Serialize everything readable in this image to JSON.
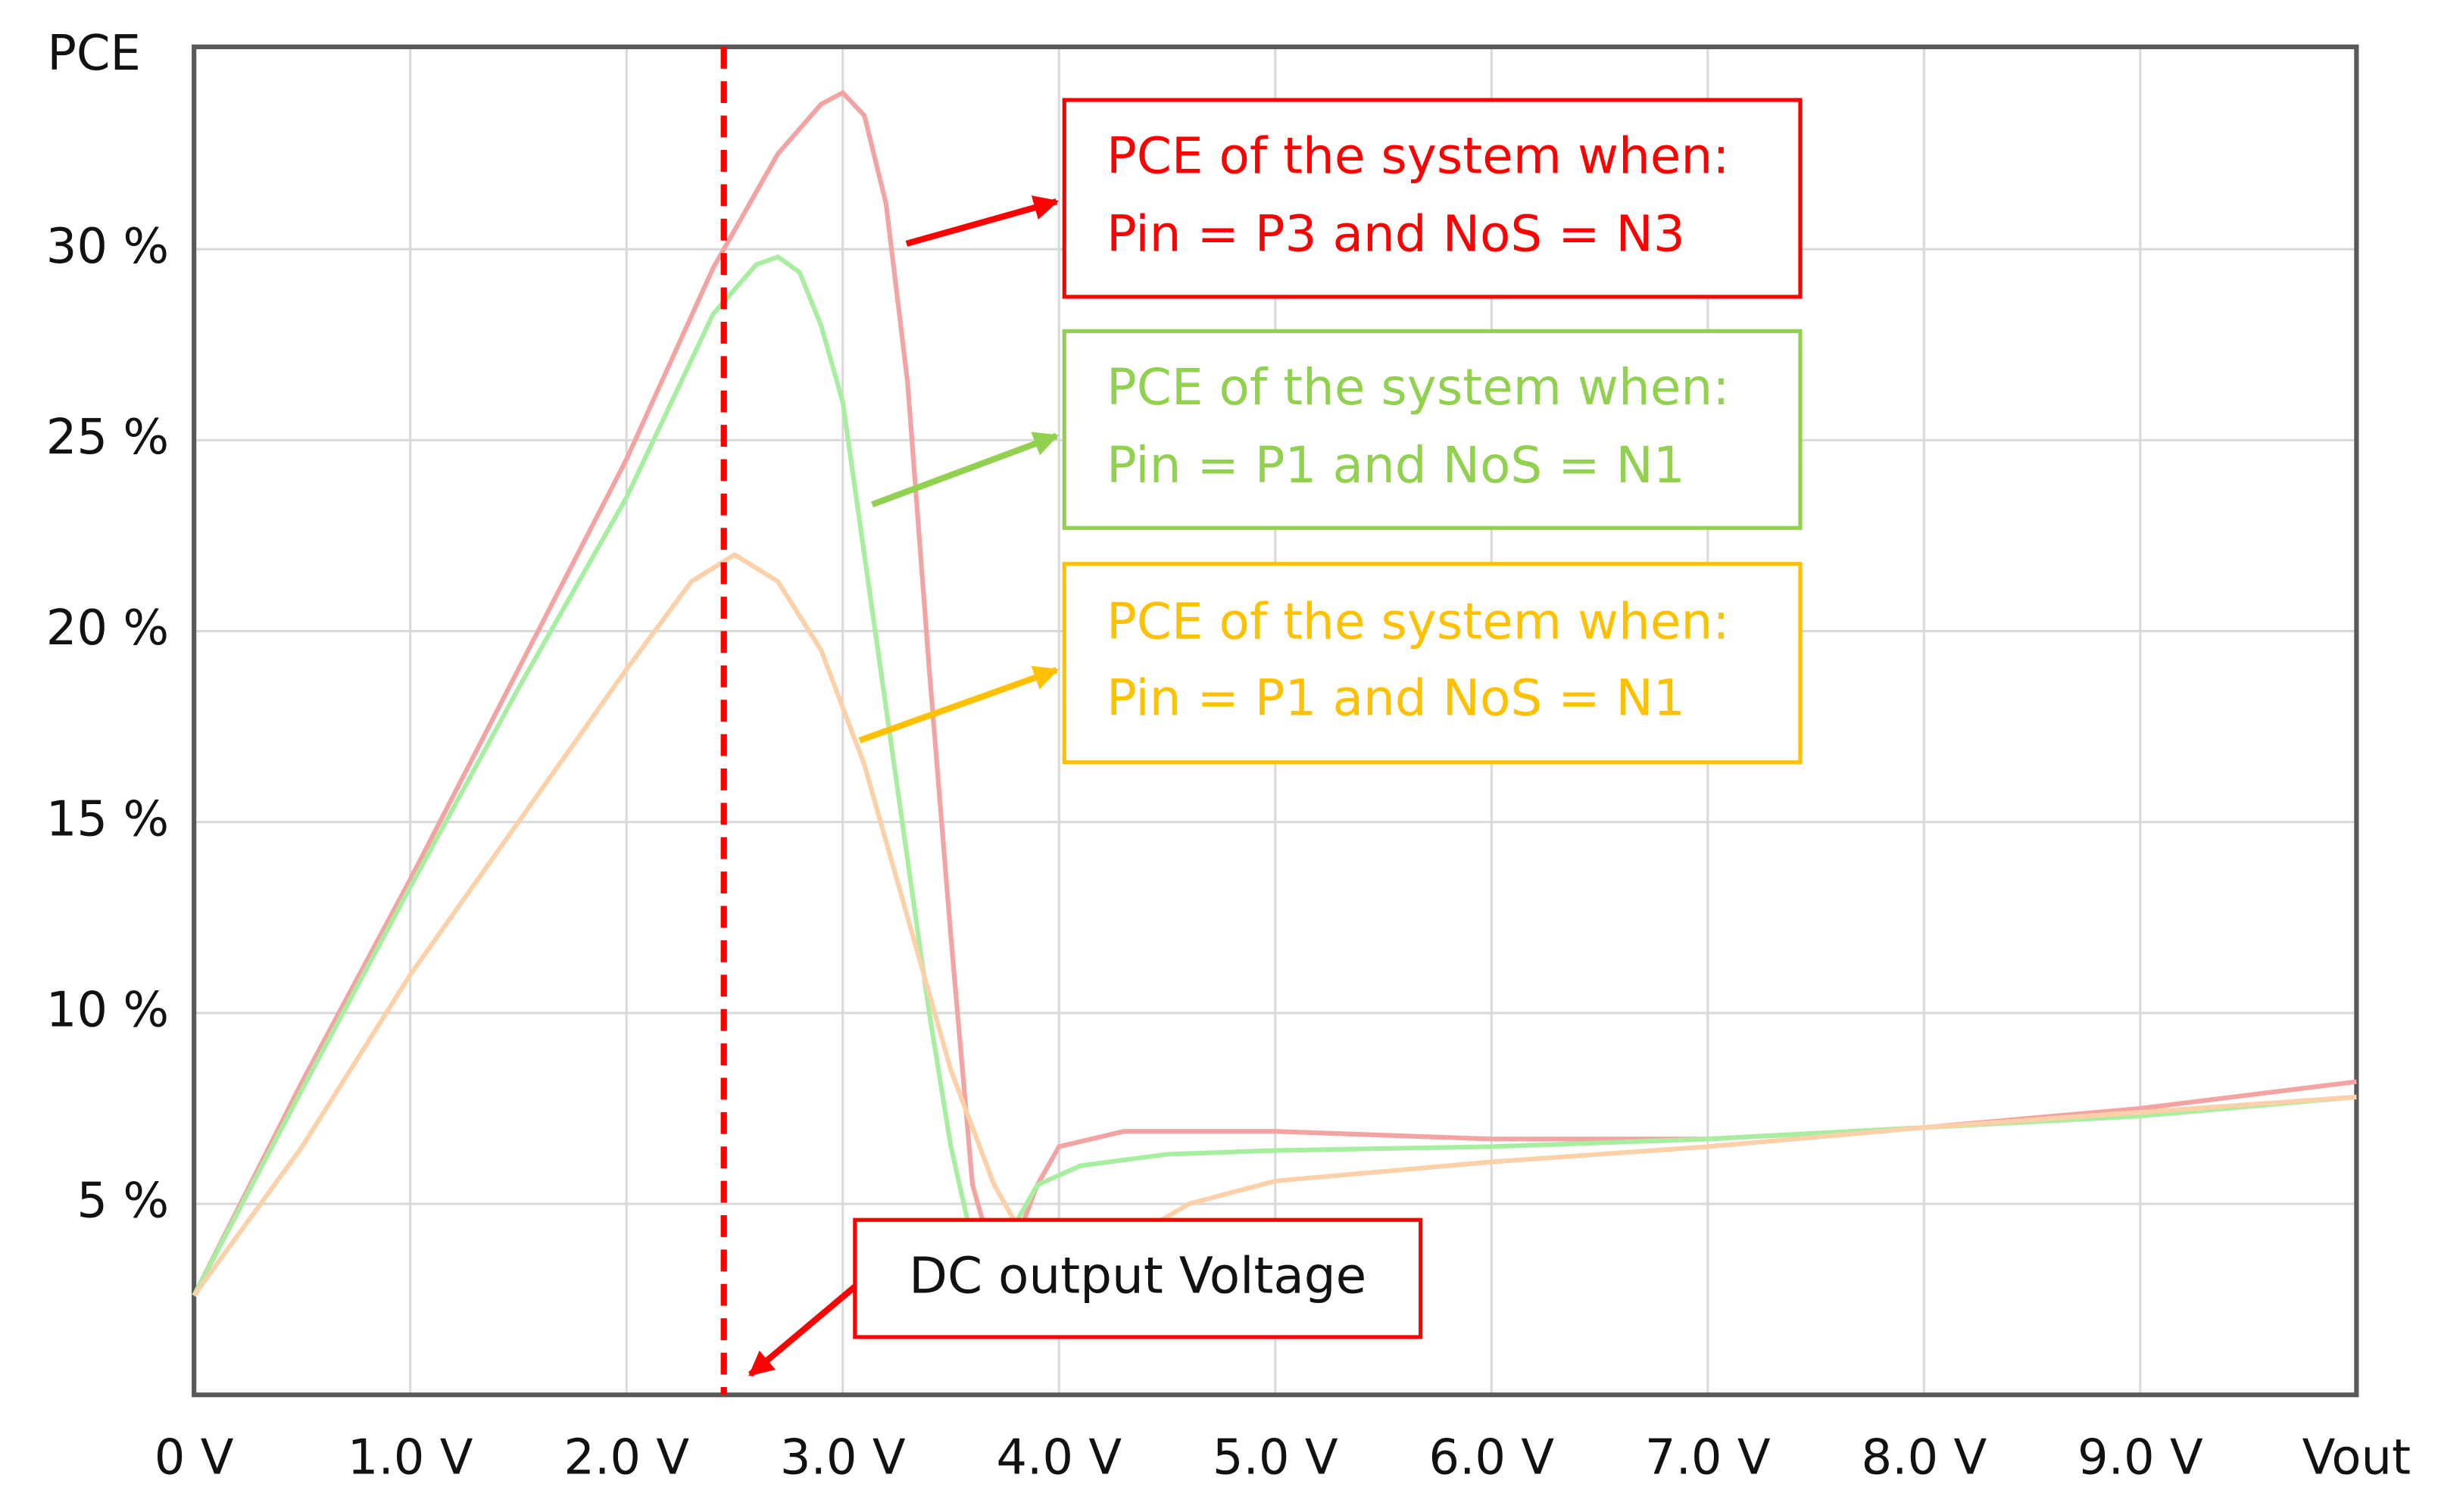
{
  "chart_data": {
    "type": "line",
    "y_label": "PCE",
    "xlim": [
      0,
      10
    ],
    "ylim": [
      0,
      35.3
    ],
    "xticks": [
      {
        "value": 0,
        "label": "0 V"
      },
      {
        "value": 1,
        "label": "1.0 V"
      },
      {
        "value": 2,
        "label": "2.0 V"
      },
      {
        "value": 3,
        "label": "3.0 V"
      },
      {
        "value": 4,
        "label": "4.0 V"
      },
      {
        "value": 5,
        "label": "5.0 V"
      },
      {
        "value": 6,
        "label": "6.0 V"
      },
      {
        "value": 7,
        "label": "7.0 V"
      },
      {
        "value": 8,
        "label": "8.0 V"
      },
      {
        "value": 9,
        "label": "9.0 V"
      },
      {
        "value": 10,
        "label": "Vout"
      }
    ],
    "yticks": [
      {
        "value": 5,
        "label": "5 %"
      },
      {
        "value": 10,
        "label": "10 %"
      },
      {
        "value": 15,
        "label": "15 %"
      },
      {
        "value": 20,
        "label": "20 %"
      },
      {
        "value": 25,
        "label": "25 %"
      },
      {
        "value": 30,
        "label": "30 %"
      }
    ],
    "grid": true,
    "vline": {
      "x": 2.45,
      "color": "#ff0000"
    },
    "series": [
      {
        "color": "#f4a3a3",
        "x": [
          0,
          0.5,
          1,
          1.5,
          2,
          2.4,
          2.7,
          2.9,
          3.0,
          3.1,
          3.2,
          3.3,
          3.4,
          3.5,
          3.6,
          3.7,
          3.8,
          3.9,
          4.0,
          4.3,
          5,
          6,
          7,
          8,
          9,
          10
        ],
        "values": [
          2.6,
          8.2,
          13.5,
          19,
          24.5,
          29.5,
          32.5,
          33.8,
          34.1,
          33.5,
          31.2,
          26.5,
          19,
          12,
          5.5,
          3.5,
          4,
          5.5,
          6.5,
          6.9,
          6.9,
          6.7,
          6.7,
          7,
          7.5,
          8.2
        ]
      },
      {
        "color": "#a8eea0",
        "x": [
          0,
          0.5,
          1,
          1.5,
          2,
          2.4,
          2.6,
          2.7,
          2.8,
          2.9,
          3.0,
          3.2,
          3.4,
          3.5,
          3.6,
          3.7,
          3.8,
          3.9,
          4.1,
          4.5,
          5,
          6,
          7,
          8,
          9,
          10
        ],
        "values": [
          2.6,
          8,
          13.3,
          18.5,
          23.5,
          28.3,
          29.6,
          29.8,
          29.4,
          28,
          26,
          18,
          10,
          6.5,
          4,
          3.5,
          4.5,
          5.5,
          6,
          6.3,
          6.4,
          6.5,
          6.7,
          7,
          7.3,
          7.8
        ]
      },
      {
        "color": "#fcd0a8",
        "x": [
          0,
          0.5,
          1,
          1.5,
          2,
          2.3,
          2.5,
          2.7,
          2.9,
          3.1,
          3.3,
          3.5,
          3.7,
          3.9,
          4.0,
          4.3,
          4.6,
          5,
          6,
          7,
          8,
          9,
          10
        ],
        "values": [
          2.6,
          6.5,
          11,
          15,
          19,
          21.3,
          22,
          21.3,
          19.5,
          16.5,
          12.5,
          8.5,
          5.5,
          3.5,
          3,
          4,
          5,
          5.6,
          6.1,
          6.5,
          7,
          7.4,
          7.8
        ]
      }
    ],
    "annotations": [
      {
        "lines": [
          "PCE of the system when:",
          "Pin = P3 and NoS = N3"
        ],
        "color": "#ff0000",
        "text_color": "#ff0000"
      },
      {
        "lines": [
          "PCE of the system when:",
          "Pin = P1 and NoS = N1"
        ],
        "color": "#92d050",
        "text_color": "#92d050"
      },
      {
        "lines": [
          "PCE of the system when:",
          "Pin = P1 and NoS = N1"
        ],
        "color": "#ffc000",
        "text_color": "#ffc000"
      },
      {
        "lines": [
          "DC output Voltage"
        ],
        "color": "#ff0000",
        "text_color": "#111111"
      }
    ]
  }
}
